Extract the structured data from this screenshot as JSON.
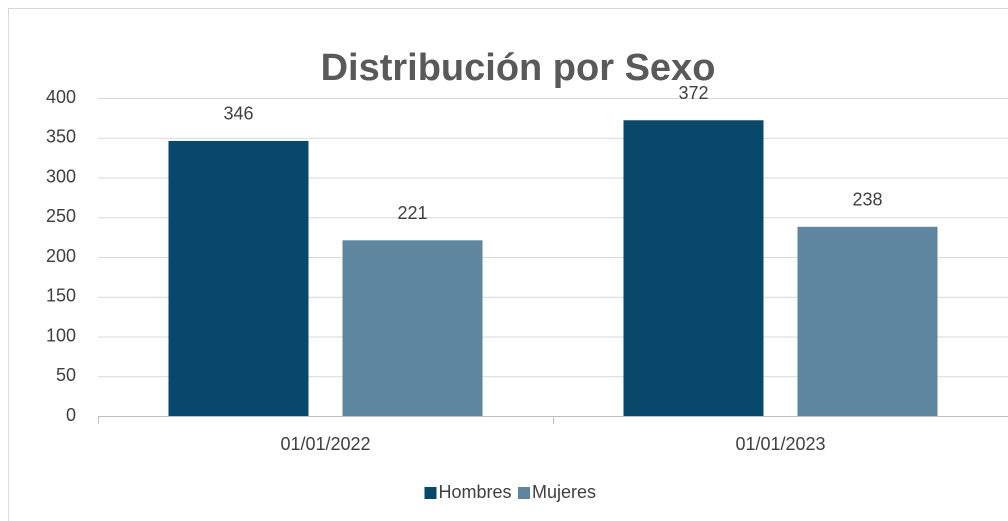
{
  "chart_data": {
    "type": "bar",
    "title": "Distribución por Sexo",
    "categories": [
      "01/01/2022",
      "01/01/2023"
    ],
    "series": [
      {
        "name": "Hombres",
        "color": "#08496b",
        "values": [
          346,
          372
        ]
      },
      {
        "name": "Mujeres",
        "color": "#5e879f",
        "values": [
          221,
          238
        ]
      }
    ],
    "ylim": [
      0,
      400
    ],
    "yticks": [
      0,
      50,
      100,
      150,
      200,
      250,
      300,
      350,
      400
    ],
    "grid": true,
    "legend": "bottom"
  }
}
